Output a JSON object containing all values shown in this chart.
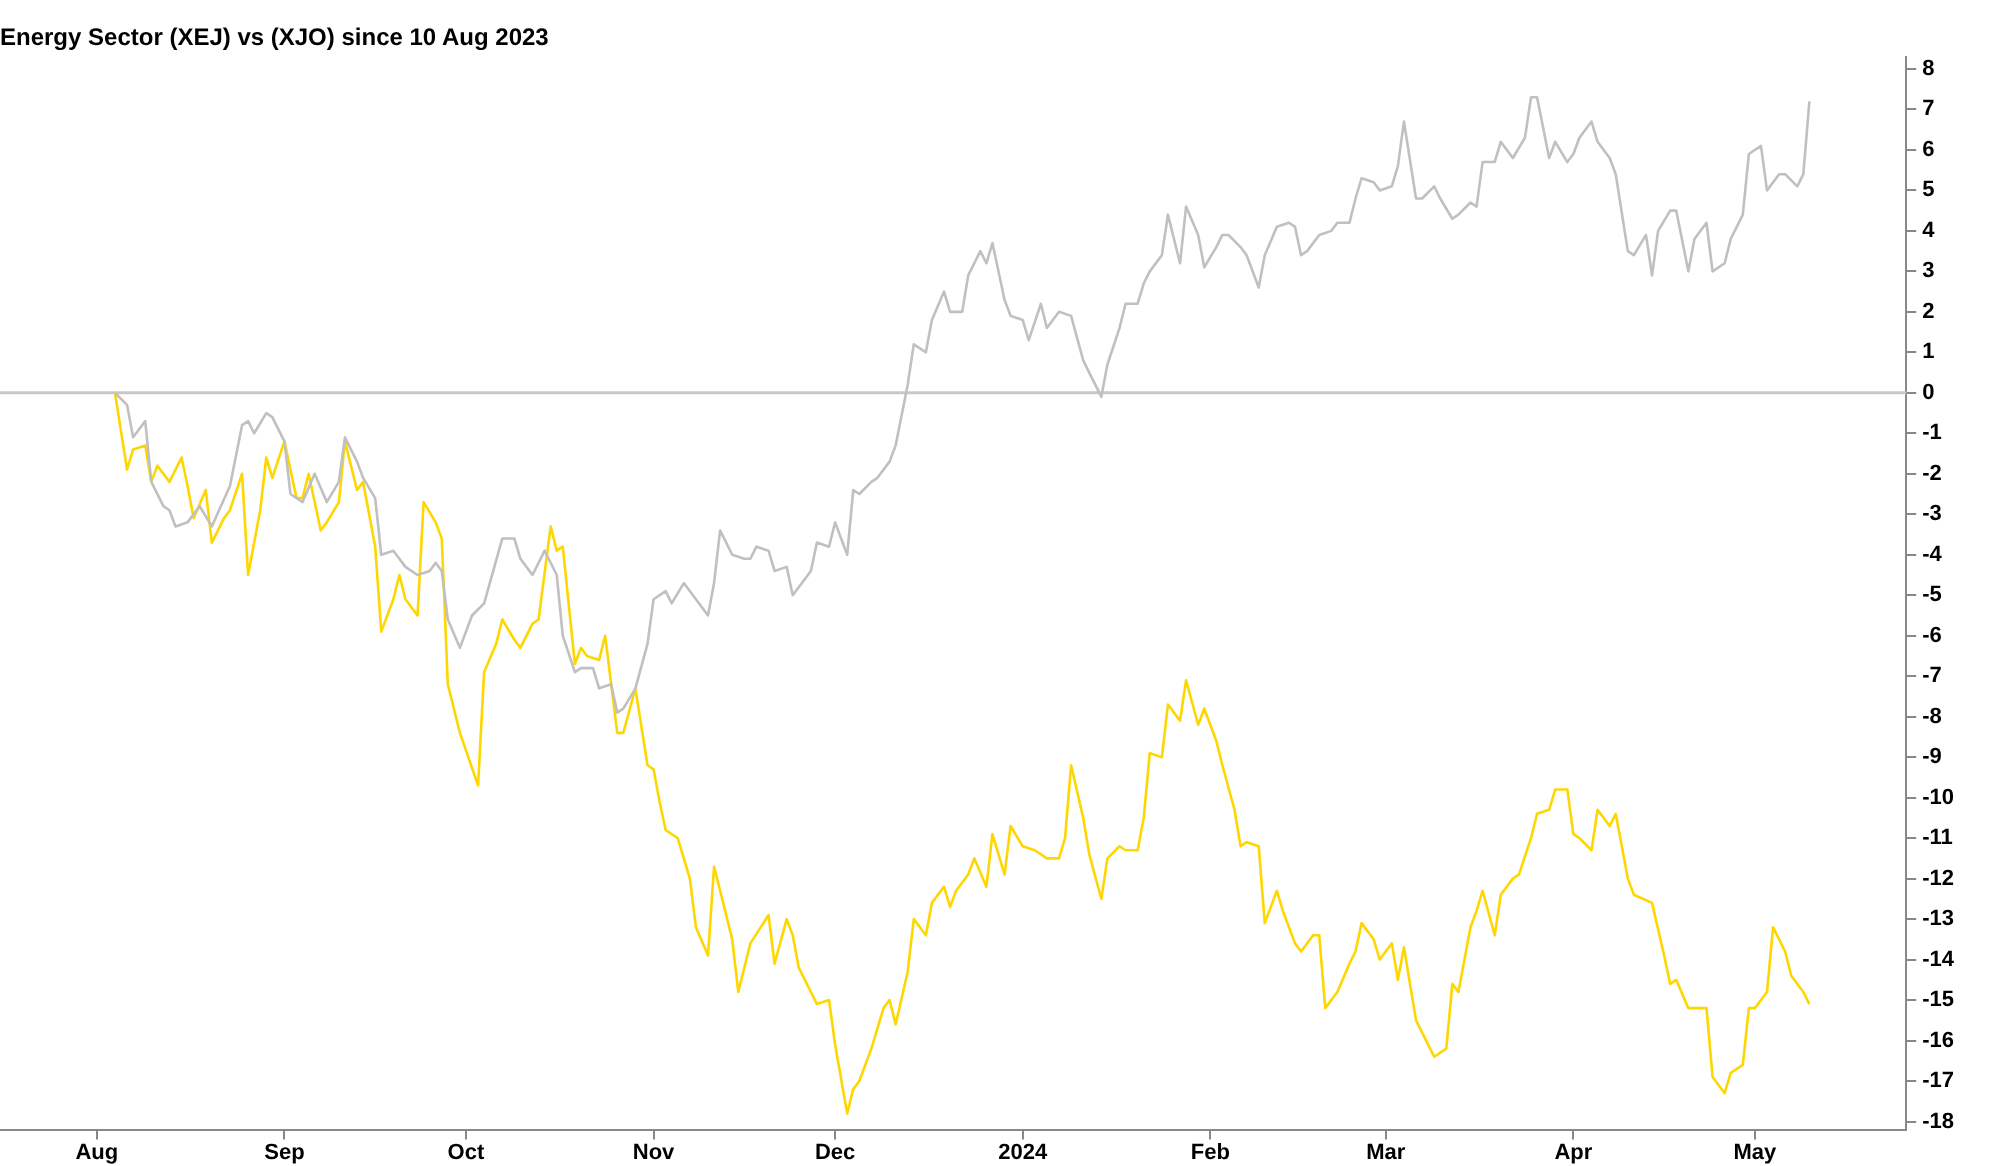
{
  "chart_data": {
    "type": "line",
    "title": "Energy Sector (XEJ) vs (XJO) since 10 Aug 2023",
    "xlim": [
      "2023-07-16",
      "2024-05-26"
    ],
    "xticks": [
      {
        "value": "2023-08-01",
        "label": "Aug"
      },
      {
        "value": "2023-09-01",
        "label": "Sep"
      },
      {
        "value": "2023-10-01",
        "label": "Oct"
      },
      {
        "value": "2023-11-01",
        "label": "Nov"
      },
      {
        "value": "2023-12-01",
        "label": "Dec"
      },
      {
        "value": "2024-01-01",
        "label": "2024"
      },
      {
        "value": "2024-02-01",
        "label": "Feb"
      },
      {
        "value": "2024-03-01",
        "label": "Mar"
      },
      {
        "value": "2024-04-01",
        "label": "Apr"
      },
      {
        "value": "2024-05-01",
        "label": "May"
      }
    ],
    "ylim": [
      -18.2,
      8.3
    ],
    "yticks": [
      -18,
      -17,
      -16,
      -15,
      -14,
      -13,
      -12,
      -11,
      -10,
      -9,
      -8,
      -7,
      -6,
      -5,
      -4,
      -3,
      -2,
      -1,
      0,
      1,
      2,
      3,
      4,
      5,
      6,
      7,
      8
    ],
    "grid": false,
    "legend": false,
    "ref_lines": [
      {
        "axis": "y",
        "value": 0,
        "color": "#c8c8c8"
      }
    ],
    "series": [
      {
        "color": "#c0c0c0",
        "x": [
          "2023-08-04",
          "2023-08-06",
          "2023-08-07",
          "2023-08-09",
          "2023-08-10",
          "2023-08-12",
          "2023-08-13",
          "2023-08-14",
          "2023-08-16",
          "2023-08-18",
          "2023-08-20",
          "2023-08-23",
          "2023-08-25",
          "2023-08-26",
          "2023-08-27",
          "2023-08-29",
          "2023-08-30",
          "2023-09-01",
          "2023-09-02",
          "2023-09-04",
          "2023-09-06",
          "2023-09-08",
          "2023-09-10",
          "2023-09-11",
          "2023-09-13",
          "2023-09-14",
          "2023-09-16",
          "2023-09-17",
          "2023-09-19",
          "2023-09-21",
          "2023-09-23",
          "2023-09-25",
          "2023-09-26",
          "2023-09-27",
          "2023-09-28",
          "2023-09-30",
          "2023-10-02",
          "2023-10-04",
          "2023-10-07",
          "2023-10-09",
          "2023-10-10",
          "2023-10-12",
          "2023-10-14",
          "2023-10-16",
          "2023-10-17",
          "2023-10-19",
          "2023-10-20",
          "2023-10-22",
          "2023-10-23",
          "2023-10-25",
          "2023-10-26",
          "2023-10-27",
          "2023-10-29",
          "2023-10-31",
          "2023-11-01",
          "2023-11-03",
          "2023-11-04",
          "2023-11-06",
          "2023-11-10",
          "2023-11-11",
          "2023-11-12",
          "2023-11-14",
          "2023-11-16",
          "2023-11-17",
          "2023-11-18",
          "2023-11-20",
          "2023-11-21",
          "2023-11-23",
          "2023-11-24",
          "2023-11-27",
          "2023-11-28",
          "2023-11-30",
          "2023-12-01",
          "2023-12-03",
          "2023-12-04",
          "2023-12-05",
          "2023-12-07",
          "2023-12-08",
          "2023-12-10",
          "2023-12-11",
          "2023-12-13",
          "2023-12-14",
          "2023-12-16",
          "2023-12-17",
          "2023-12-19",
          "2023-12-20",
          "2023-12-22",
          "2023-12-23",
          "2023-12-25",
          "2023-12-26",
          "2023-12-27",
          "2023-12-29",
          "2023-12-30",
          "2024-01-01",
          "2024-01-02",
          "2024-01-04",
          "2024-01-05",
          "2024-01-07",
          "2024-01-09",
          "2024-01-11",
          "2024-01-12",
          "2024-01-14",
          "2024-01-15",
          "2024-01-17",
          "2024-01-18",
          "2024-01-20",
          "2024-01-21",
          "2024-01-22",
          "2024-01-24",
          "2024-01-25",
          "2024-01-27",
          "2024-01-28",
          "2024-01-30",
          "2024-01-31",
          "2024-02-02",
          "2024-02-03",
          "2024-02-04",
          "2024-02-06",
          "2024-02-07",
          "2024-02-09",
          "2024-02-10",
          "2024-02-12",
          "2024-02-14",
          "2024-02-15",
          "2024-02-16",
          "2024-02-17",
          "2024-02-19",
          "2024-02-21",
          "2024-02-22",
          "2024-02-24",
          "2024-02-25",
          "2024-02-26",
          "2024-02-28",
          "2024-02-29",
          "2024-03-02",
          "2024-03-03",
          "2024-03-04",
          "2024-03-06",
          "2024-03-07",
          "2024-03-09",
          "2024-03-10",
          "2024-03-12",
          "2024-03-13",
          "2024-03-15",
          "2024-03-16",
          "2024-03-17",
          "2024-03-19",
          "2024-03-20",
          "2024-03-22",
          "2024-03-24",
          "2024-03-25",
          "2024-03-26",
          "2024-03-28",
          "2024-03-29",
          "2024-03-31",
          "2024-04-01",
          "2024-04-02",
          "2024-04-04",
          "2024-04-05",
          "2024-04-07",
          "2024-04-08",
          "2024-04-10",
          "2024-04-11",
          "2024-04-13",
          "2024-04-14",
          "2024-04-15",
          "2024-04-17",
          "2024-04-18",
          "2024-04-20",
          "2024-04-21",
          "2024-04-23",
          "2024-04-24",
          "2024-04-26",
          "2024-04-27",
          "2024-04-29",
          "2024-04-30",
          "2024-05-02",
          "2024-05-03",
          "2024-05-05",
          "2024-05-06",
          "2024-05-08",
          "2024-05-09",
          "2024-05-10"
        ],
        "values": [
          0.0,
          -0.3,
          -1.1,
          -0.7,
          -2.2,
          -2.8,
          -2.9,
          -3.3,
          -3.2,
          -2.8,
          -3.3,
          -2.3,
          -0.8,
          -0.7,
          -1.0,
          -0.5,
          -0.6,
          -1.2,
          -2.5,
          -2.7,
          -2.0,
          -2.7,
          -2.2,
          -1.1,
          -1.7,
          -2.1,
          -2.6,
          -4.0,
          -3.9,
          -4.3,
          -4.5,
          -4.4,
          -4.2,
          -4.4,
          -5.6,
          -6.3,
          -5.5,
          -5.2,
          -3.6,
          -3.6,
          -4.1,
          -4.5,
          -3.9,
          -4.5,
          -6.0,
          -6.9,
          -6.8,
          -6.8,
          -7.3,
          -7.2,
          -7.9,
          -7.8,
          -7.3,
          -6.2,
          -5.1,
          -4.9,
          -5.2,
          -4.7,
          -5.5,
          -4.7,
          -3.4,
          -4.0,
          -4.1,
          -4.1,
          -3.8,
          -3.9,
          -4.4,
          -4.3,
          -5.0,
          -4.4,
          -3.7,
          -3.8,
          -3.2,
          -4.0,
          -2.4,
          -2.5,
          -2.2,
          -2.1,
          -1.7,
          -1.3,
          0.2,
          1.2,
          1.0,
          1.8,
          2.5,
          2.0,
          2.0,
          2.9,
          3.5,
          3.2,
          3.7,
          2.3,
          1.9,
          1.8,
          1.3,
          2.2,
          1.6,
          2.0,
          1.9,
          0.8,
          0.5,
          -0.1,
          0.7,
          1.6,
          2.2,
          2.2,
          2.7,
          3.0,
          3.4,
          4.4,
          3.2,
          4.6,
          3.9,
          3.1,
          3.6,
          3.9,
          3.9,
          3.6,
          3.4,
          2.6,
          3.4,
          4.1,
          4.2,
          4.1,
          3.4,
          3.5,
          3.9,
          4.0,
          4.2,
          4.2,
          4.8,
          5.3,
          5.2,
          5.0,
          5.1,
          5.6,
          6.7,
          4.8,
          4.8,
          5.1,
          4.8,
          4.3,
          4.4,
          4.7,
          4.6,
          5.7,
          5.7,
          6.2,
          5.8,
          6.3,
          7.3,
          7.3,
          5.8,
          6.2,
          5.7,
          5.9,
          6.3,
          6.7,
          6.2,
          5.8,
          5.4,
          3.5,
          3.4,
          3.9,
          2.9,
          4.0,
          4.5,
          4.5,
          3.0,
          3.8,
          4.2,
          3.0,
          3.2,
          3.8,
          4.4,
          5.9,
          6.1,
          5.0,
          5.4,
          5.4,
          5.1,
          5.4,
          7.2
        ]
      },
      {
        "color": "#ffd700",
        "x": [
          "2023-08-04",
          "2023-08-06",
          "2023-08-07",
          "2023-08-09",
          "2023-08-10",
          "2023-08-11",
          "2023-08-13",
          "2023-08-15",
          "2023-08-16",
          "2023-08-17",
          "2023-08-19",
          "2023-08-20",
          "2023-08-22",
          "2023-08-23",
          "2023-08-25",
          "2023-08-26",
          "2023-08-28",
          "2023-08-29",
          "2023-08-30",
          "2023-09-01",
          "2023-09-03",
          "2023-09-04",
          "2023-09-05",
          "2023-09-07",
          "2023-09-08",
          "2023-09-10",
          "2023-09-11",
          "2023-09-13",
          "2023-09-14",
          "2023-09-16",
          "2023-09-17",
          "2023-09-19",
          "2023-09-20",
          "2023-09-21",
          "2023-09-23",
          "2023-09-24",
          "2023-09-26",
          "2023-09-27",
          "2023-09-28",
          "2023-09-30",
          "2023-10-03",
          "2023-10-04",
          "2023-10-06",
          "2023-10-07",
          "2023-10-09",
          "2023-10-10",
          "2023-10-12",
          "2023-10-13",
          "2023-10-15",
          "2023-10-16",
          "2023-10-17",
          "2023-10-19",
          "2023-10-20",
          "2023-10-21",
          "2023-10-23",
          "2023-10-24",
          "2023-10-26",
          "2023-10-27",
          "2023-10-29",
          "2023-10-31",
          "2023-11-01",
          "2023-11-02",
          "2023-11-03",
          "2023-11-05",
          "2023-11-07",
          "2023-11-08",
          "2023-11-10",
          "2023-11-11",
          "2023-11-12",
          "2023-11-14",
          "2023-11-15",
          "2023-11-17",
          "2023-11-20",
          "2023-11-21",
          "2023-11-23",
          "2023-11-24",
          "2023-11-25",
          "2023-11-27",
          "2023-11-28",
          "2023-11-30",
          "2023-12-01",
          "2023-12-03",
          "2023-12-04",
          "2023-12-05",
          "2023-12-07",
          "2023-12-09",
          "2023-12-10",
          "2023-12-11",
          "2023-12-13",
          "2023-12-14",
          "2023-12-16",
          "2023-12-17",
          "2023-12-19",
          "2023-12-20",
          "2023-12-21",
          "2023-12-23",
          "2023-12-24",
          "2023-12-26",
          "2023-12-27",
          "2023-12-29",
          "2023-12-30",
          "2024-01-01",
          "2024-01-03",
          "2024-01-05",
          "2024-01-07",
          "2024-01-08",
          "2024-01-09",
          "2024-01-11",
          "2024-01-12",
          "2024-01-14",
          "2024-01-15",
          "2024-01-17",
          "2024-01-18",
          "2024-01-20",
          "2024-01-21",
          "2024-01-22",
          "2024-01-24",
          "2024-01-25",
          "2024-01-27",
          "2024-01-28",
          "2024-01-30",
          "2024-01-31",
          "2024-02-02",
          "2024-02-03",
          "2024-02-05",
          "2024-02-06",
          "2024-02-07",
          "2024-02-09",
          "2024-02-10",
          "2024-02-12",
          "2024-02-13",
          "2024-02-15",
          "2024-02-16",
          "2024-02-18",
          "2024-02-19",
          "2024-02-20",
          "2024-02-22",
          "2024-02-24",
          "2024-02-25",
          "2024-02-26",
          "2024-02-28",
          "2024-02-29",
          "2024-03-02",
          "2024-03-03",
          "2024-03-04",
          "2024-03-06",
          "2024-03-08",
          "2024-03-09",
          "2024-03-11",
          "2024-03-12",
          "2024-03-13",
          "2024-03-15",
          "2024-03-16",
          "2024-03-17",
          "2024-03-19",
          "2024-03-20",
          "2024-03-22",
          "2024-03-23",
          "2024-03-25",
          "2024-03-26",
          "2024-03-28",
          "2024-03-29",
          "2024-03-31",
          "2024-04-01",
          "2024-04-02",
          "2024-04-04",
          "2024-04-05",
          "2024-04-07",
          "2024-04-08",
          "2024-04-10",
          "2024-04-11",
          "2024-04-14",
          "2024-04-16",
          "2024-04-17",
          "2024-04-18",
          "2024-04-20",
          "2024-04-23",
          "2024-04-24",
          "2024-04-26",
          "2024-04-27",
          "2024-04-29",
          "2024-04-30",
          "2024-05-01",
          "2024-05-03",
          "2024-05-04",
          "2024-05-06",
          "2024-05-07",
          "2024-05-09",
          "2024-05-10"
        ],
        "values": [
          0.0,
          -1.9,
          -1.4,
          -1.3,
          -2.2,
          -1.8,
          -2.2,
          -1.6,
          -2.3,
          -3.1,
          -2.4,
          -3.7,
          -3.1,
          -2.9,
          -2.0,
          -4.5,
          -2.9,
          -1.6,
          -2.1,
          -1.2,
          -2.6,
          -2.6,
          -2.0,
          -3.4,
          -3.2,
          -2.7,
          -1.2,
          -2.4,
          -2.2,
          -3.8,
          -5.9,
          -5.1,
          -4.5,
          -5.1,
          -5.5,
          -2.7,
          -3.2,
          -3.6,
          -7.2,
          -8.4,
          -9.7,
          -6.9,
          -6.2,
          -5.6,
          -6.1,
          -6.3,
          -5.7,
          -5.6,
          -3.3,
          -3.9,
          -3.8,
          -6.7,
          -6.3,
          -6.5,
          -6.6,
          -6.0,
          -8.4,
          -8.4,
          -7.3,
          -9.2,
          -9.3,
          -10.1,
          -10.8,
          -11.0,
          -12.0,
          -13.2,
          -13.9,
          -11.7,
          -12.3,
          -13.5,
          -14.8,
          -13.6,
          -12.9,
          -14.1,
          -13.0,
          -13.4,
          -14.2,
          -14.8,
          -15.1,
          -15.0,
          -16.1,
          -17.8,
          -17.2,
          -17.0,
          -16.2,
          -15.2,
          -15.0,
          -15.6,
          -14.3,
          -13.0,
          -13.4,
          -12.6,
          -12.2,
          -12.7,
          -12.3,
          -11.9,
          -11.5,
          -12.2,
          -10.9,
          -11.9,
          -10.7,
          -11.2,
          -11.3,
          -11.5,
          -11.5,
          -11.0,
          -9.2,
          -10.5,
          -11.4,
          -12.5,
          -11.5,
          -11.2,
          -11.3,
          -11.3,
          -10.5,
          -8.9,
          -9.0,
          -7.7,
          -8.1,
          -7.1,
          -8.2,
          -7.8,
          -8.6,
          -9.2,
          -10.3,
          -11.2,
          -11.1,
          -11.2,
          -13.1,
          -12.3,
          -12.8,
          -13.6,
          -13.8,
          -13.4,
          -13.4,
          -15.2,
          -14.8,
          -14.1,
          -13.8,
          -13.1,
          -13.5,
          -14.0,
          -13.6,
          -14.5,
          -13.7,
          -15.5,
          -16.1,
          -16.4,
          -16.2,
          -14.6,
          -14.8,
          -13.2,
          -12.8,
          -12.3,
          -13.4,
          -12.4,
          -12.0,
          -11.9,
          -11.0,
          -10.4,
          -10.3,
          -9.8,
          -9.8,
          -10.9,
          -11.0,
          -11.3,
          -10.3,
          -10.7,
          -10.4,
          -12.0,
          -12.4,
          -12.6,
          -13.9,
          -14.6,
          -14.5,
          -15.2,
          -15.2,
          -16.9,
          -17.3,
          -16.8,
          -16.6,
          -15.2,
          -15.2,
          -14.8,
          -13.2,
          -13.8,
          -14.4,
          -14.8,
          -15.1
        ]
      }
    ]
  }
}
